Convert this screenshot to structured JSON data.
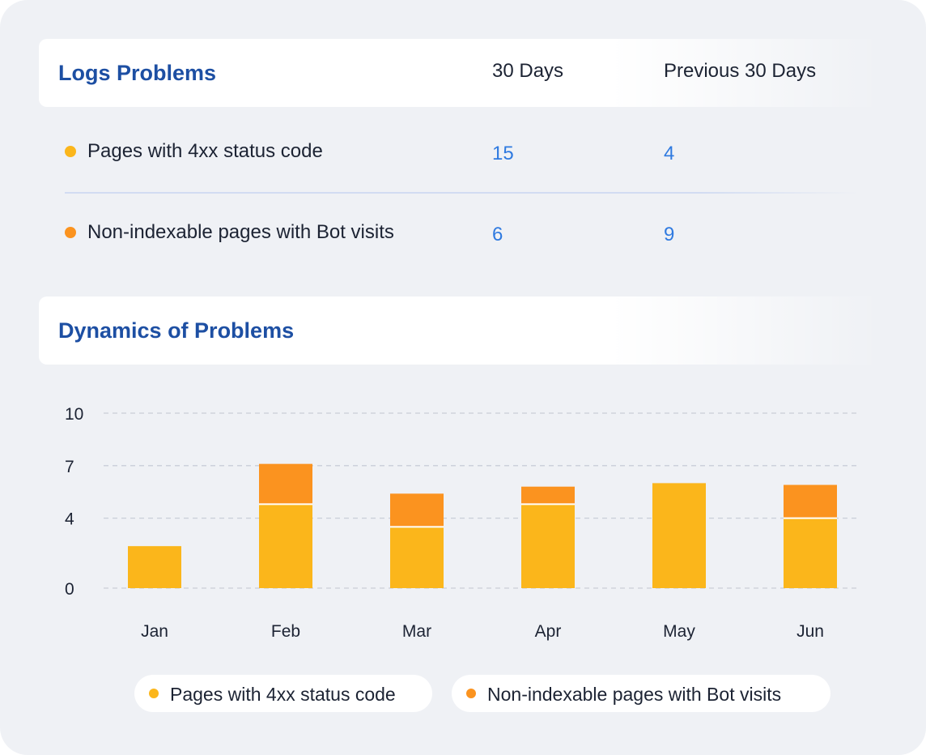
{
  "colors": {
    "title": "#1d4fa3",
    "value": "#2f7ae0",
    "series_4xx": "#fbb61b",
    "series_nonindex": "#fb931f"
  },
  "logs": {
    "title": "Logs Problems",
    "col_current": "30 Days",
    "col_previous": "Previous 30 Days",
    "rows": [
      {
        "label": "Pages with 4xx status code",
        "current": "15",
        "previous": "4"
      },
      {
        "label": "Non-indexable pages with Bot visits",
        "current": "6",
        "previous": "9"
      }
    ]
  },
  "dynamics": {
    "title": "Dynamics of Problems"
  },
  "chart_data": {
    "type": "bar",
    "stacked": true,
    "categories": [
      "Jan",
      "Feb",
      "Mar",
      "Apr",
      "May",
      "Jun"
    ],
    "yticks": [
      0,
      4,
      7,
      10
    ],
    "ylim": [
      0,
      10
    ],
    "grid": true,
    "legend_position": "bottom",
    "series": [
      {
        "name": "Pages with 4xx status code",
        "values": [
          2.4,
          4.8,
          3.5,
          4.8,
          6.0,
          4.0
        ],
        "color": "#fbb61b"
      },
      {
        "name": "Non-indexable pages with Bot visits",
        "values": [
          0,
          2.3,
          1.9,
          1.0,
          0,
          1.9
        ],
        "color": "#fb931f"
      }
    ]
  }
}
